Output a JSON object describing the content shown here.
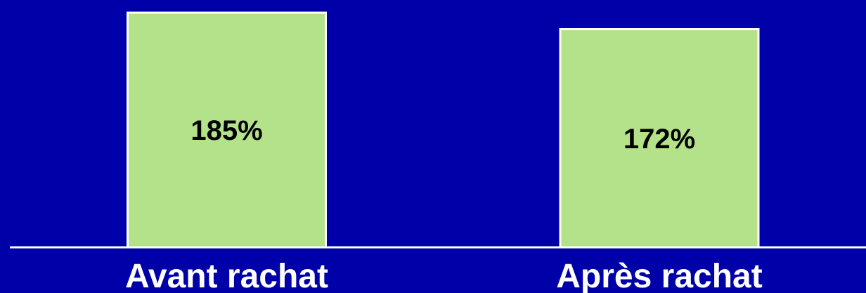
{
  "chart_data": {
    "type": "bar",
    "categories": [
      "Avant rachat",
      "Après rachat"
    ],
    "values": [
      185,
      172
    ],
    "value_labels": [
      "185%",
      "172%"
    ],
    "title": "",
    "xlabel": "",
    "ylabel": "",
    "ylim": [
      0,
      195
    ],
    "grid": false,
    "legend": "none"
  },
  "colors": {
    "background": "#0000a8",
    "bar_fill": "#b3e28a",
    "bar_stroke": "#ffffff",
    "axis": "#ffffff",
    "value_text": "#000000",
    "category_text": "#ffffff"
  }
}
